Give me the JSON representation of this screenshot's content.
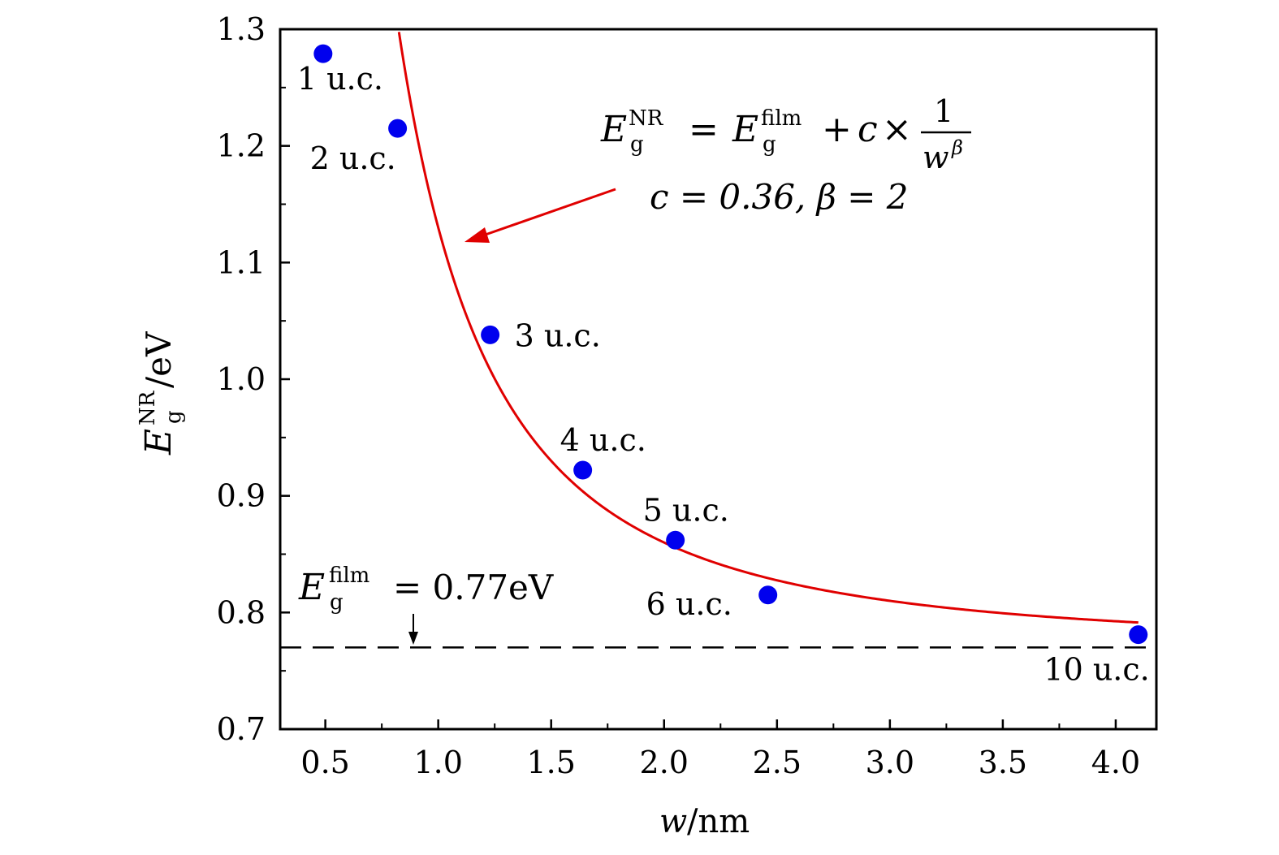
{
  "chart_data": {
    "type": "scatter",
    "xlabel": {
      "var": "w",
      "unit": "/nm"
    },
    "ylabel": {
      "var": "E",
      "sub": "g",
      "sup": "NR",
      "unit": "/eV"
    },
    "xlim": [
      0.3,
      4.18
    ],
    "ylim": [
      0.7,
      1.3
    ],
    "xticks": [
      "0.5",
      "1.0",
      "1.5",
      "2.0",
      "2.5",
      "3.0",
      "3.5",
      "4.0"
    ],
    "yticks": [
      "0.7",
      "0.8",
      "0.9",
      "1.0",
      "1.1",
      "1.2",
      "1.3"
    ],
    "points": [
      {
        "x": 0.49,
        "y": 1.279,
        "label": "1 u.c."
      },
      {
        "x": 0.82,
        "y": 1.215,
        "label": "2 u.c."
      },
      {
        "x": 1.23,
        "y": 1.038,
        "label": "3 u.c."
      },
      {
        "x": 1.64,
        "y": 0.922,
        "label": "4 u.c."
      },
      {
        "x": 2.05,
        "y": 0.862,
        "label": "5 u.c."
      },
      {
        "x": 2.46,
        "y": 0.815,
        "label": "6 u.c."
      },
      {
        "x": 4.1,
        "y": 0.781,
        "label": "10 u.c."
      }
    ],
    "fit": {
      "E_film": 0.77,
      "c": 0.36,
      "beta": 2,
      "x_start": 0.826,
      "x_end": 4.1,
      "color": "#e00000"
    },
    "baseline": {
      "y": 0.77,
      "label_var": "E",
      "label_sub": "g",
      "label_sup": "film",
      "label_value": "= 0.77eV"
    },
    "formula": {
      "lhs_var": "E",
      "lhs_sub": "g",
      "lhs_sup": "NR",
      "eq": "=",
      "rhs_var": "E",
      "rhs_sub": "g",
      "rhs_sup": "film",
      "plus": "+",
      "c": "c",
      "times": "×",
      "frac_num": "1",
      "frac_den_var": "w",
      "frac_den_sup": "β",
      "params": "c = 0.36, β = 2"
    },
    "colors": {
      "point": "#0000ee",
      "fit": "#e00000",
      "arrow": "#e00000",
      "axes": "#000000"
    },
    "grid": false
  }
}
